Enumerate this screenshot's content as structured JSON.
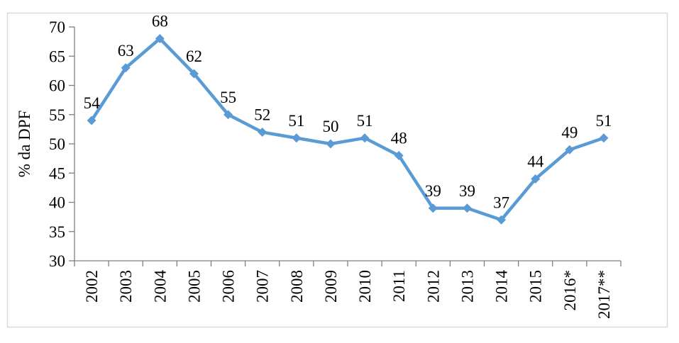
{
  "chart_data": {
    "type": "line",
    "title": "",
    "categories": [
      "2002",
      "2003",
      "2004",
      "2005",
      "2006",
      "2007",
      "2008",
      "2009",
      "2010",
      "2011",
      "2012",
      "2013",
      "2014",
      "2015",
      "2016*",
      "2017**"
    ],
    "values": [
      54,
      63,
      68,
      62,
      55,
      52,
      51,
      50,
      51,
      48,
      39,
      39,
      37,
      44,
      49,
      51
    ],
    "data_labels": [
      "54",
      "63",
      "68",
      "62",
      "55",
      "52",
      "51",
      "50",
      "51",
      "48",
      "39",
      "39",
      "37",
      "44",
      "49",
      "51"
    ],
    "xlabel": "",
    "ylabel": "% da DPF",
    "ylim": [
      30,
      70
    ],
    "ytick_step": 5,
    "yticks": [
      30,
      35,
      40,
      45,
      50,
      55,
      60,
      65,
      70
    ],
    "grid": false,
    "legend_position": "none",
    "marker": "diamond",
    "colors": {
      "line": "#5B9BD5",
      "marker": "#5B9BD5",
      "axis": "#7F7F7F",
      "text": "#000000",
      "chart_border": "#D9D9D9",
      "background": "#FFFFFF"
    }
  }
}
